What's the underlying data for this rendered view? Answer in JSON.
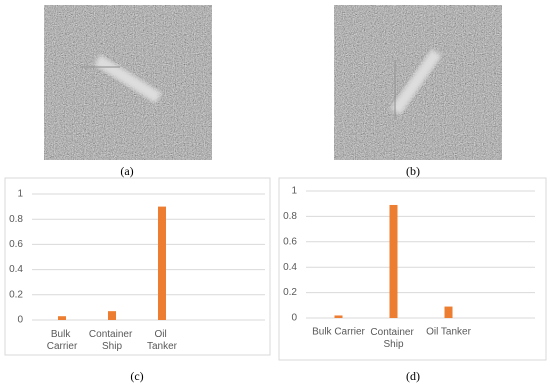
{
  "captions": [
    "(a)",
    "(b)",
    "(c)",
    "(d)"
  ],
  "chart_data": [
    {
      "type": "bar",
      "categories": [
        "Bulk Carrier",
        "Container Ship",
        "Oil Tanker"
      ],
      "values": [
        0.03,
        0.07,
        0.9
      ],
      "color": "#ed7d31",
      "ylim": [
        0,
        1
      ],
      "yticks": [
        0,
        0.2,
        0.4,
        0.6,
        0.8,
        1
      ],
      "grid": true
    },
    {
      "type": "bar",
      "categories": [
        "Bulk Carrier",
        "Container Ship",
        "Oil Tanker"
      ],
      "values": [
        0.02,
        0.89,
        0.09
      ],
      "color": "#ed7d31",
      "ylim": [
        0,
        1
      ],
      "yticks": [
        0,
        0.2,
        0.4,
        0.6,
        0.8,
        1
      ],
      "grid": true
    }
  ]
}
